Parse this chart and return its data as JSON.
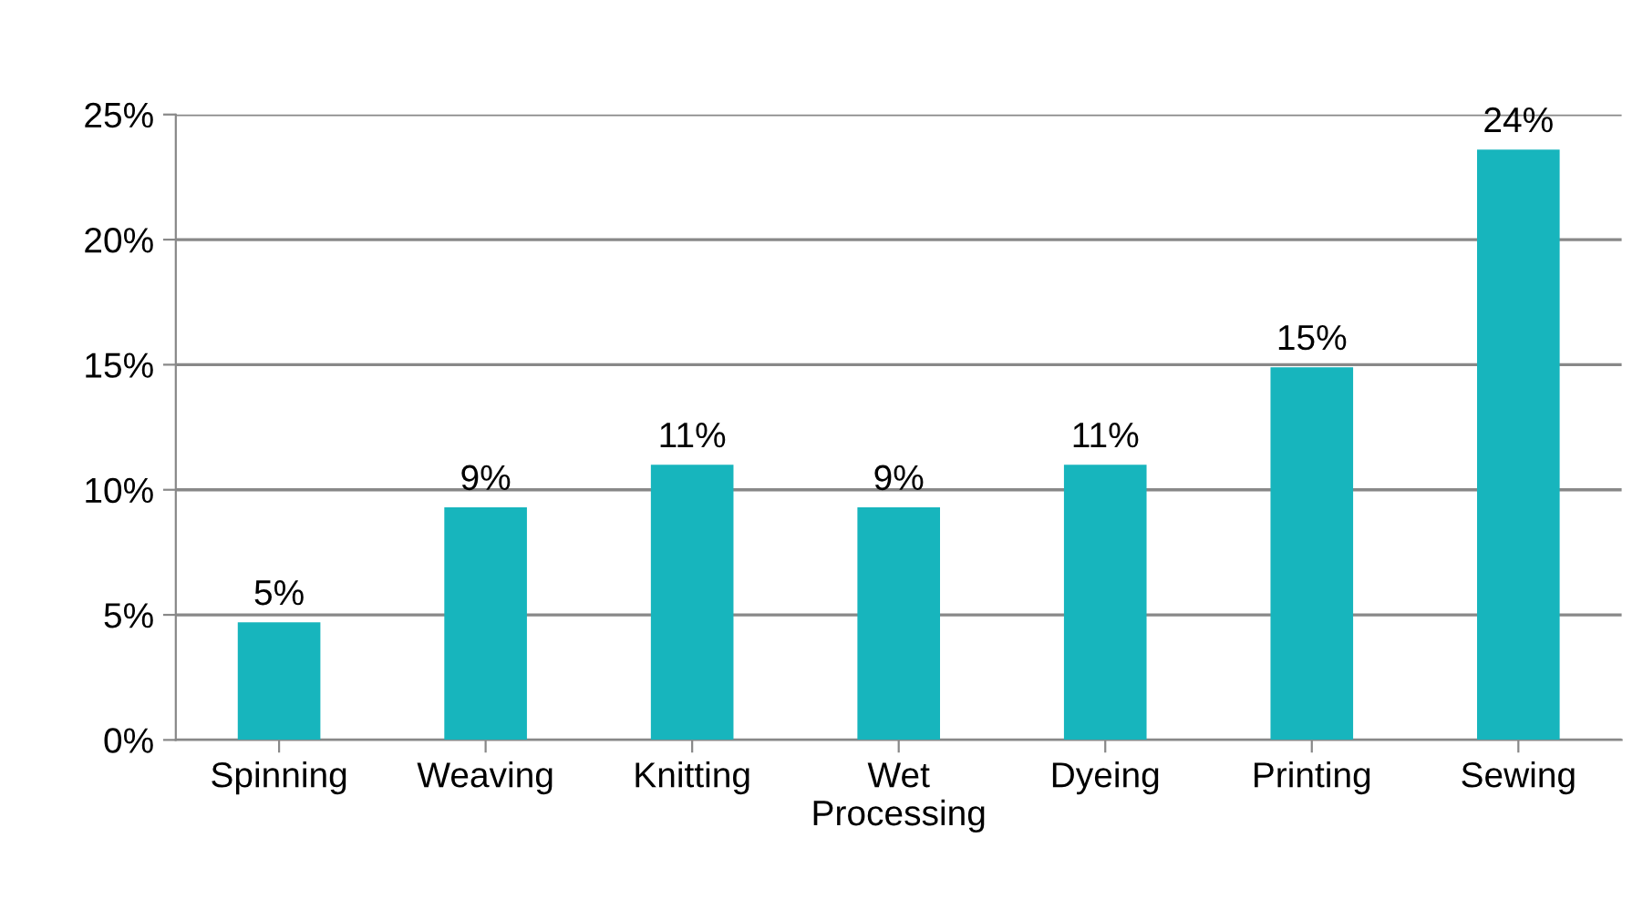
{
  "chart_data": {
    "type": "bar",
    "categories": [
      "Spinning",
      "Weaving",
      "Knitting",
      "Wet\nProcessing",
      "Dyeing",
      "Printing",
      "Sewing"
    ],
    "values": [
      4.7,
      9.3,
      11.0,
      9.3,
      11.0,
      14.9,
      23.6
    ],
    "value_labels": [
      "5%",
      "9%",
      "11%",
      "9%",
      "11%",
      "15%",
      "24%"
    ],
    "color": "#17b5bd",
    "ylim": [
      0,
      25
    ],
    "yticks": [
      {
        "value": 0,
        "label": "0%"
      },
      {
        "value": 5,
        "label": "5%"
      },
      {
        "value": 10,
        "label": "10%"
      },
      {
        "value": 15,
        "label": "15%"
      },
      {
        "value": 20,
        "label": "20%"
      },
      {
        "value": 25,
        "label": "25%"
      }
    ],
    "grid": "y"
  }
}
